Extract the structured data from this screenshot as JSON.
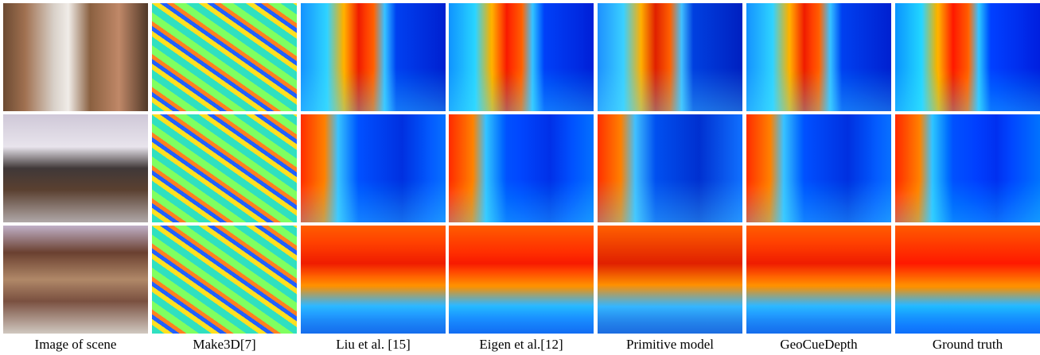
{
  "figure": {
    "captions": [
      "Image of scene",
      "Make3D[7]",
      "Liu et al. [15]",
      "Eigen et al.[12]",
      "Primitive model",
      "GeoCueDepth",
      "Ground truth"
    ]
  }
}
